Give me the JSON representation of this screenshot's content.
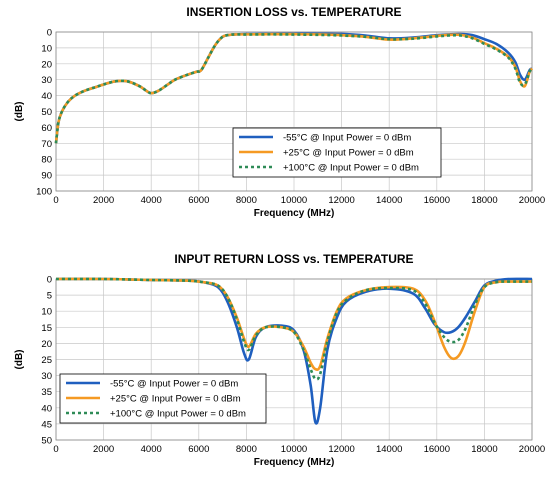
{
  "chart_data": [
    {
      "type": "line",
      "title": "INSERTION LOSS vs. TEMPERATURE",
      "xlabel": "Frequency (MHz)",
      "ylabel": "(dB)",
      "xlim": [
        0,
        20000
      ],
      "ylim": [
        100,
        0
      ],
      "y_inverted": true,
      "grid": true,
      "legend": "bottom-right",
      "xticks": [
        0,
        2000,
        4000,
        6000,
        8000,
        10000,
        12000,
        14000,
        16000,
        18000,
        20000
      ],
      "yticks": [
        0,
        10,
        20,
        30,
        40,
        50,
        60,
        70,
        80,
        90,
        100
      ],
      "series": [
        {
          "name": "-55°C @  Input Power = 0 dBm",
          "color": "#1f5fbf",
          "style": "solid",
          "x": [
            0,
            100,
            250,
            500,
            800,
            1200,
            1600,
            2000,
            2500,
            3000,
            3500,
            3800,
            4000,
            4300,
            4700,
            5000,
            5500,
            5900,
            6100,
            6400,
            6700,
            7000,
            7300,
            7600,
            8000,
            9000,
            10000,
            11000,
            12000,
            13000,
            14000,
            15000,
            16000,
            16500,
            17000,
            17500,
            18000,
            18500,
            19000,
            19300,
            19500,
            19700,
            19900,
            20000
          ],
          "y": [
            70,
            57,
            50,
            44,
            40,
            37,
            35,
            33,
            31,
            31,
            34,
            37,
            38.5,
            37,
            33,
            30,
            27,
            25,
            24,
            16,
            8,
            3,
            1.8,
            1.5,
            1.3,
            1.2,
            1.1,
            1.1,
            1.2,
            2.2,
            4,
            3.5,
            2,
            1.5,
            1.3,
            2,
            4.5,
            7.5,
            13,
            19,
            27,
            30,
            24,
            23
          ]
        },
        {
          "name": "+25°C @  Input Power = 0 dBm",
          "color": "#f59a23",
          "style": "solid",
          "x": [
            0,
            100,
            250,
            500,
            800,
            1200,
            1600,
            2000,
            2500,
            3000,
            3500,
            3800,
            4000,
            4300,
            4700,
            5000,
            5500,
            5900,
            6100,
            6400,
            6700,
            7000,
            7300,
            7600,
            8000,
            9000,
            10000,
            11000,
            12000,
            13000,
            14000,
            15000,
            16000,
            16500,
            17000,
            17500,
            18000,
            18500,
            19000,
            19300,
            19500,
            19700,
            19900,
            20000
          ],
          "y": [
            70,
            57,
            50,
            44,
            40,
            37,
            35,
            33,
            31,
            31,
            34,
            37,
            38.5,
            37,
            33,
            30,
            27,
            25,
            24,
            16,
            8,
            3,
            1.8,
            1.5,
            1.5,
            1.4,
            1.4,
            1.5,
            2,
            3,
            4.8,
            4,
            2.5,
            1.8,
            1.8,
            3.5,
            7,
            10.5,
            15.5,
            22,
            31,
            34,
            25,
            23
          ]
        },
        {
          "name": "+100°C @  Input Power = 0 dBm",
          "color": "#2e8b57",
          "style": "dotted",
          "x": [
            0,
            100,
            250,
            500,
            800,
            1200,
            1600,
            2000,
            2500,
            3000,
            3500,
            3800,
            4000,
            4300,
            4700,
            5000,
            5500,
            5900,
            6100,
            6400,
            6700,
            7000,
            7300,
            7600,
            8000,
            9000,
            10000,
            11000,
            12000,
            13000,
            14000,
            15000,
            16000,
            16500,
            17000,
            17500,
            18000,
            18500,
            19000,
            19300,
            19500,
            19700,
            19900,
            20000
          ],
          "y": [
            70,
            57,
            50,
            44,
            40,
            37,
            35,
            33,
            31,
            31,
            34,
            37,
            38.5,
            37,
            33,
            30,
            27,
            25,
            24,
            16,
            8,
            3,
            1.8,
            1.5,
            1.6,
            1.5,
            1.6,
            1.8,
            2.2,
            3,
            4.5,
            4.2,
            2.8,
            2.2,
            2.2,
            4,
            7.5,
            11,
            16,
            23,
            32,
            33,
            25,
            23
          ]
        }
      ]
    },
    {
      "type": "line",
      "title": "INPUT RETURN LOSS vs. TEMPERATURE",
      "xlabel": "Frequency (MHz)",
      "ylabel": "(dB)",
      "xlim": [
        0,
        20000
      ],
      "ylim": [
        50,
        0
      ],
      "y_inverted": true,
      "grid": true,
      "legend": "bottom-left",
      "xticks": [
        0,
        2000,
        4000,
        6000,
        8000,
        10000,
        12000,
        14000,
        16000,
        18000,
        20000
      ],
      "yticks": [
        0,
        5,
        10,
        15,
        20,
        25,
        30,
        35,
        40,
        45,
        50
      ],
      "series": [
        {
          "name": "-55°C @  Input Power = 0 dBm",
          "color": "#1f5fbf",
          "style": "solid",
          "x": [
            0,
            2000,
            4000,
            5500,
            6200,
            6800,
            7200,
            7600,
            7900,
            8100,
            8400,
            8800,
            9500,
            10000,
            10400,
            10700,
            10900,
            11100,
            11400,
            11800,
            12200,
            13000,
            14000,
            15000,
            15500,
            15900,
            16300,
            16600,
            16900,
            17200,
            17600,
            18000,
            18500,
            19000,
            20000
          ],
          "y": [
            0,
            0,
            0.3,
            0.5,
            1,
            2.5,
            7,
            15,
            23,
            25,
            18,
            15,
            14.5,
            16,
            22,
            33,
            44.5,
            40,
            22,
            12,
            7,
            4,
            3,
            4.5,
            9,
            14,
            16.5,
            16.5,
            15,
            12,
            7,
            2,
            0.5,
            0,
            0
          ]
        },
        {
          "name": "+25°C @  Input Power = 0 dBm",
          "color": "#f59a23",
          "style": "solid",
          "x": [
            0,
            2000,
            4000,
            5500,
            6200,
            6800,
            7200,
            7600,
            7900,
            8100,
            8400,
            8800,
            9500,
            10000,
            10400,
            10700,
            10900,
            11100,
            11400,
            11800,
            12200,
            13000,
            14000,
            15000,
            15500,
            15900,
            16300,
            16600,
            16900,
            17200,
            17600,
            18000,
            18500,
            19000,
            20000
          ],
          "y": [
            0,
            0,
            0.3,
            0.5,
            1,
            2,
            5.5,
            12,
            18.5,
            21,
            17,
            15,
            15,
            16.5,
            21,
            26,
            28,
            27,
            18.5,
            10,
            6,
            3.5,
            2.5,
            3,
            6.5,
            13,
            21,
            24.5,
            24,
            19.5,
            10,
            2.5,
            1,
            0.8,
            0.8
          ]
        },
        {
          "name": "+100°C @  Input Power = 0 dBm",
          "color": "#2e8b57",
          "style": "dotted",
          "x": [
            0,
            2000,
            4000,
            5500,
            6200,
            6800,
            7200,
            7600,
            7900,
            8100,
            8400,
            8800,
            9500,
            10000,
            10400,
            10700,
            10900,
            11100,
            11400,
            11800,
            12200,
            13000,
            14000,
            15000,
            15500,
            15900,
            16300,
            16600,
            16900,
            17200,
            17600,
            18000,
            18500,
            19000,
            20000
          ],
          "y": [
            0,
            0,
            0.3,
            0.5,
            1,
            2,
            5.5,
            12.5,
            19.5,
            22,
            17.5,
            15,
            15,
            16.5,
            22,
            28,
            31,
            29.5,
            19.5,
            10.5,
            6.5,
            3.5,
            2.8,
            3.5,
            7.5,
            13.5,
            18,
            19.5,
            19,
            15.5,
            8,
            2.5,
            1,
            0.8,
            0.8
          ]
        }
      ]
    }
  ]
}
